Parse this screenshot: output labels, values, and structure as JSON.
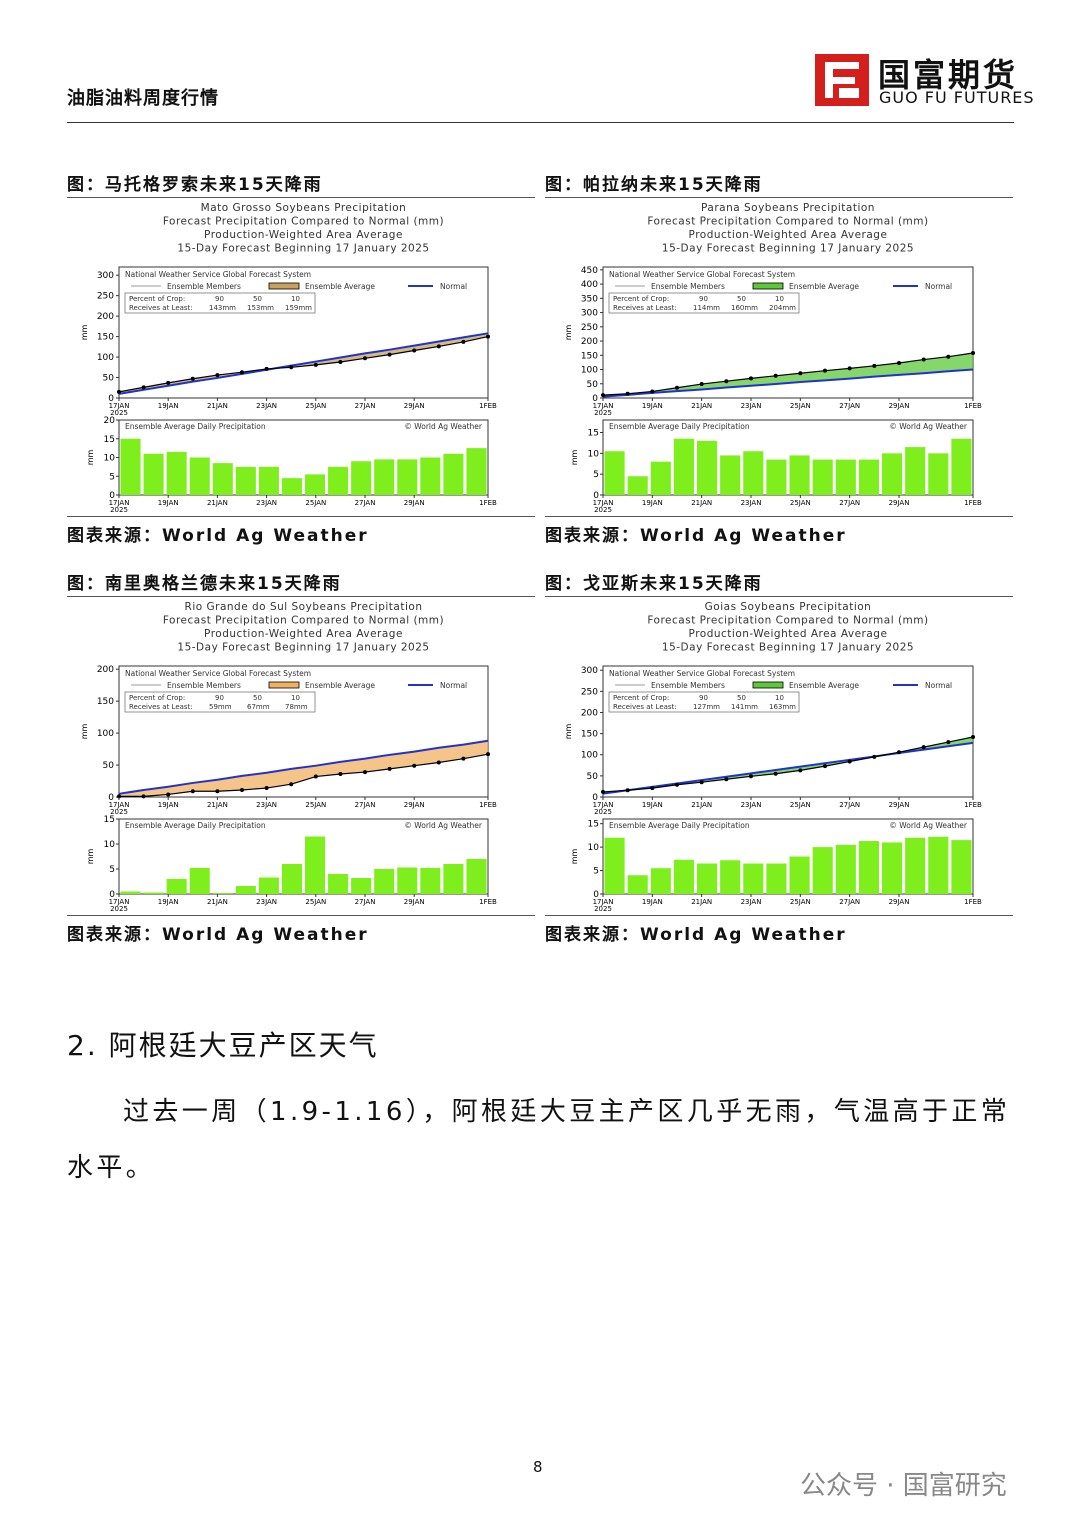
{
  "header": {
    "title": "油脂油料周度行情",
    "logo_cn": "国富期货",
    "logo_en": "GUO FU FUTURES"
  },
  "figures": [
    {
      "caption": "图：马托格罗索未来15天降雨",
      "source": "图表来源：World Ag Weather",
      "chart": {
        "title_lines": [
          "Mato Grosso Soybeans Precipitation",
          "Forecast Precipitation Compared to Normal (mm)",
          "Production-Weighted Area Average",
          "15-Day Forecast Beginning 17 January 2025"
        ],
        "system_label": "National Weather Service Global Forecast System",
        "legend": {
          "members": "Ensemble Members",
          "average": "Ensemble Average",
          "normal": "Normal"
        },
        "crop_label": "Percent of Crop:",
        "crop_percent": [
          90,
          50,
          10
        ],
        "receives_label": "Receives at Least:",
        "receives": [
          "143mm",
          "153mm",
          "159mm"
        ],
        "y_unit": "mm",
        "year": "2025",
        "categories": [
          "17JAN",
          null,
          "19JAN",
          null,
          "21JAN",
          null,
          "23JAN",
          null,
          "25JAN",
          null,
          "27JAN",
          null,
          "29JAN",
          null,
          null,
          "1FEB"
        ],
        "cumulative": {
          "ylim": [
            0,
            320
          ],
          "yticks": [
            0,
            50,
            100,
            150,
            200,
            250,
            300
          ],
          "band_color": "#c8a25a",
          "normal_color": "#2233cc",
          "average": [
            15,
            26,
            37,
            47,
            56,
            63,
            71,
            75,
            81,
            88,
            97,
            106,
            116,
            126,
            137,
            150
          ],
          "normal": [
            10,
            20,
            30,
            40,
            49,
            59,
            69,
            79,
            89,
            99,
            109,
            118,
            128,
            138,
            148,
            158
          ]
        },
        "daily": {
          "title": "Ensemble Average Daily Precipitation",
          "credit": "© World Ag Weather",
          "ylim": [
            0,
            20
          ],
          "yticks": [
            0,
            5,
            10,
            15,
            20
          ],
          "color": "#7fee1d",
          "values": [
            15,
            11,
            11.5,
            10,
            8.5,
            7.5,
            7.5,
            4.5,
            5.5,
            7.5,
            9,
            9.5,
            9.5,
            10,
            11,
            12.5
          ]
        }
      }
    },
    {
      "caption": "图：帕拉纳未来15天降雨",
      "source": "图表来源：World Ag Weather",
      "chart": {
        "title_lines": [
          "Parana Soybeans Precipitation",
          "Forecast Precipitation Compared to Normal (mm)",
          "Production-Weighted Area Average",
          "15-Day Forecast Beginning 17 January 2025"
        ],
        "system_label": "National Weather Service Global Forecast System",
        "legend": {
          "members": "Ensemble Members",
          "average": "Ensemble Average",
          "normal": "Normal"
        },
        "crop_label": "Percent of Crop:",
        "crop_percent": [
          90,
          50,
          10
        ],
        "receives_label": "Receives at Least:",
        "receives": [
          "114mm",
          "160mm",
          "204mm"
        ],
        "y_unit": "mm",
        "year": "2025",
        "categories": [
          "17JAN",
          null,
          "19JAN",
          null,
          "21JAN",
          null,
          "23JAN",
          null,
          "25JAN",
          null,
          "27JAN",
          null,
          "29JAN",
          null,
          null,
          "1FEB"
        ],
        "cumulative": {
          "ylim": [
            0,
            460
          ],
          "yticks": [
            0,
            50,
            100,
            150,
            200,
            250,
            300,
            350,
            400,
            450
          ],
          "band_color": "#5cc83a",
          "normal_color": "#2233cc",
          "average": [
            10,
            15,
            23,
            36,
            49,
            59,
            69,
            78,
            87,
            96,
            104,
            113,
            123,
            135,
            145,
            158
          ],
          "normal": [
            5,
            11,
            18,
            24,
            30,
            37,
            43,
            49,
            56,
            62,
            68,
            75,
            81,
            87,
            94,
            100
          ]
        },
        "daily": {
          "title": "Ensemble Average Daily Precipitation",
          "credit": "© World Ag Weather",
          "ylim": [
            0,
            18
          ],
          "yticks": [
            0,
            5,
            10,
            15
          ],
          "color": "#7fee1d",
          "values": [
            10.5,
            4.5,
            8,
            13.5,
            13,
            9.5,
            10.5,
            8.5,
            9.5,
            8.5,
            8.5,
            8.5,
            10,
            11.5,
            10,
            13.5
          ]
        }
      }
    },
    {
      "caption": "图：南里奥格兰德未来15天降雨",
      "source": "图表来源：World Ag Weather",
      "chart": {
        "title_lines": [
          "Rio Grande do Sul Soybeans Precipitation",
          "Forecast Precipitation Compared to Normal (mm)",
          "Production-Weighted Area Average",
          "15-Day Forecast Beginning 17 January 2025"
        ],
        "system_label": "National Weather Service Global Forecast System",
        "legend": {
          "members": "Ensemble Members",
          "average": "Ensemble Average",
          "normal": "Normal"
        },
        "crop_label": "Percent of Crop:",
        "crop_percent": [
          90,
          50,
          10
        ],
        "receives_label": "Receives at Least:",
        "receives": [
          "59mm",
          "67mm",
          "78mm"
        ],
        "y_unit": "mm",
        "year": "2025",
        "categories": [
          "17JAN",
          null,
          "19JAN",
          null,
          "21JAN",
          null,
          "23JAN",
          null,
          "25JAN",
          null,
          "27JAN",
          null,
          "29JAN",
          null,
          null,
          "1FEB"
        ],
        "cumulative": {
          "ylim": [
            0,
            205
          ],
          "yticks": [
            0,
            50,
            100,
            150,
            200
          ],
          "band_color": "#f0b060",
          "normal_color": "#2233cc",
          "average": [
            1,
            1,
            4,
            9,
            9,
            11,
            14,
            20,
            32,
            36,
            39,
            44,
            49,
            54,
            60,
            67
          ],
          "normal": [
            5,
            11,
            16,
            22,
            27,
            33,
            38,
            44,
            49,
            55,
            60,
            66,
            71,
            77,
            82,
            88
          ]
        },
        "daily": {
          "title": "Ensemble Average Daily Precipitation",
          "credit": "© World Ag Weather",
          "ylim": [
            0,
            15
          ],
          "yticks": [
            0,
            5,
            10,
            15
          ],
          "color": "#7fee1d",
          "values": [
            0.5,
            0.3,
            3,
            5.2,
            0.2,
            1.6,
            3.3,
            6,
            11.5,
            4,
            3.2,
            5,
            5.3,
            5.2,
            6,
            7
          ]
        }
      }
    },
    {
      "caption": "图：戈亚斯未来15天降雨",
      "source": "图表来源：World Ag Weather",
      "chart": {
        "title_lines": [
          "Goias Soybeans Precipitation",
          "Forecast Precipitation Compared to Normal (mm)",
          "Production-Weighted Area Average",
          "15-Day Forecast Beginning 17 January 2025"
        ],
        "system_label": "National Weather Service Global Forecast System",
        "legend": {
          "members": "Ensemble Members",
          "average": "Ensemble Average",
          "normal": "Normal"
        },
        "crop_label": "Percent of Crop:",
        "crop_percent": [
          90,
          50,
          10
        ],
        "receives_label": "Receives at Least:",
        "receives": [
          "127mm",
          "141mm",
          "163mm"
        ],
        "y_unit": "mm",
        "year": "2025",
        "categories": [
          "17JAN",
          null,
          "19JAN",
          null,
          "21JAN",
          null,
          "23JAN",
          null,
          "25JAN",
          null,
          "27JAN",
          null,
          "29JAN",
          null,
          null,
          "1FEB"
        ],
        "cumulative": {
          "ylim": [
            0,
            310
          ],
          "yticks": [
            0,
            50,
            100,
            150,
            200,
            250,
            300
          ],
          "band_color": "#5cc83a",
          "normal_color": "#2233cc",
          "average": [
            12,
            16,
            21,
            29,
            35,
            42,
            49,
            55,
            63,
            73,
            84,
            95,
            106,
            118,
            130,
            142
          ],
          "normal": [
            8,
            16,
            24,
            32,
            40,
            48,
            56,
            64,
            72,
            80,
            88,
            96,
            104,
            112,
            120,
            128
          ]
        },
        "daily": {
          "title": "Ensemble Average Daily Precipitation",
          "credit": "© World Ag Weather",
          "ylim": [
            0,
            16
          ],
          "yticks": [
            0,
            5,
            10,
            15
          ],
          "color": "#7fee1d",
          "values": [
            12,
            4,
            5.5,
            7.3,
            6.5,
            7.2,
            6.5,
            6.5,
            8,
            10,
            10.5,
            11.3,
            11,
            12,
            12.2,
            11.5
          ]
        }
      }
    }
  ],
  "section": {
    "heading": "2. 阿根廷大豆产区天气",
    "paragraph": "过去一周（1.9-1.16），阿根廷大豆主产区几乎无雨，气温高于正常水平。"
  },
  "page_number": "8",
  "watermark": "公众号 · 国富研究"
}
